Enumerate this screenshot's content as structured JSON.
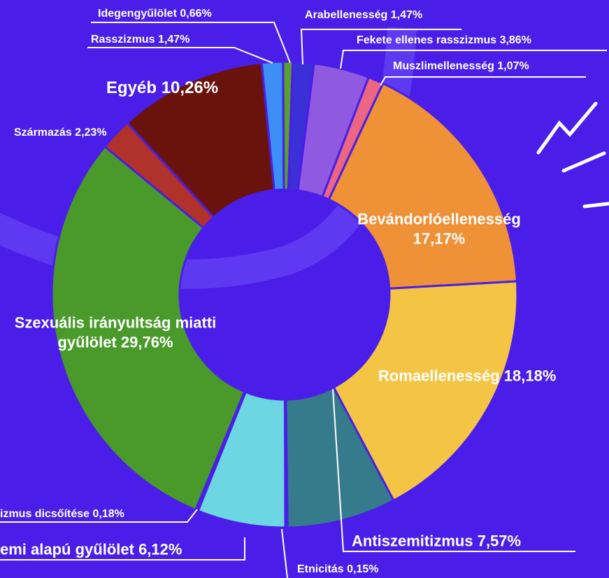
{
  "chart_data": {
    "type": "donut",
    "categories": [
      "Arabellenesség",
      "Fekete ellenes rasszizmus",
      "Muszlimellenesség",
      "Bevándorlóellenesség",
      "Romaellenesség",
      "Antiszemitizmus",
      "Etnicitás",
      "emi alapú gyűlölet",
      "izmus dicsőítése",
      "Szexuális irányultság miatti gyűlölet",
      "Származás",
      "Egyéb",
      "Rasszizmus",
      "Idegengyűlölet"
    ],
    "values": [
      1.47,
      3.86,
      1.07,
      17.17,
      18.18,
      7.57,
      0.15,
      6.12,
      0.18,
      29.76,
      2.23,
      10.26,
      1.47,
      0.66
    ],
    "value_labels": [
      "1,47%",
      "3,86%",
      "1,07%",
      "17,17%",
      "18,18%",
      "7,57%",
      "0,15%",
      "6,12%",
      "0,18%",
      "29,76%",
      "2,23%",
      "10,26%",
      "1,47%",
      "0,66%"
    ],
    "colors": [
      "#3b2fd8",
      "#8f5ae0",
      "#ea6682",
      "#ef9136",
      "#f4c545",
      "#367b8c",
      "#4c9c30",
      "#6cd6e2",
      "#3b2fd8",
      "#4a9a2b",
      "#b0322a",
      "#6a130c",
      "#3d8ef5",
      "#5aa02c"
    ]
  }
}
